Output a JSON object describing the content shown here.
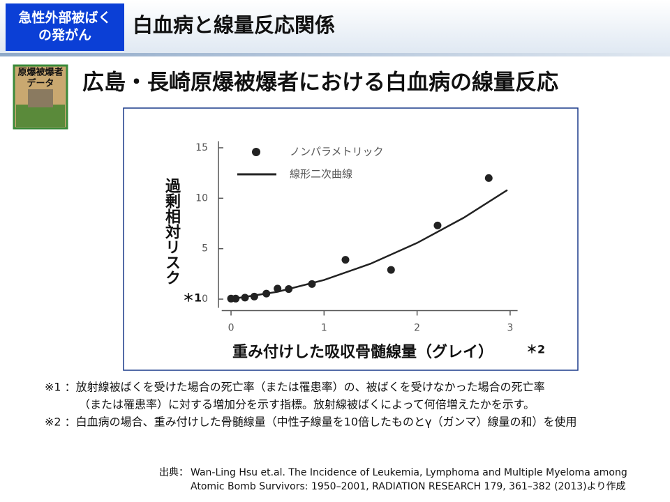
{
  "header": {
    "badge": [
      "急性外部被ばく",
      "の発がん"
    ],
    "title": "白血病と線量反応関係"
  },
  "icon_label": [
    "原爆被爆者",
    "データ"
  ],
  "heading": "広島・長崎原爆被爆者における白血病の線量反応",
  "chart_data": {
    "type": "scatter",
    "y_label": "過剰相対リスク",
    "y_label_note": "＊1",
    "x_label": "重み付けした吸収骨髄線量（グレイ）",
    "x_label_note": "＊2",
    "series": [
      {
        "name": "ノンパラメトリック",
        "type": "scatter",
        "color": "#222222",
        "x": [
          0,
          0.05,
          0.15,
          0.25,
          0.38,
          0.5,
          0.62,
          0.87,
          1.23,
          1.72,
          2.22,
          2.77
        ],
        "values": [
          0.05,
          0.05,
          0.15,
          0.25,
          0.55,
          1.05,
          1.0,
          1.5,
          3.9,
          2.9,
          7.3,
          12.0
        ]
      },
      {
        "name": "線形二次曲線",
        "type": "line",
        "color": "#222222",
        "x": [
          0,
          0.5,
          1,
          1.5,
          2,
          2.5,
          2.97
        ],
        "values": [
          0,
          0.73,
          1.9,
          3.51,
          5.57,
          8.06,
          10.81
        ]
      }
    ],
    "xlim": [
      -0.1,
      3.05
    ],
    "ylim": [
      -1,
      16
    ],
    "xticks": [
      0,
      1,
      2,
      3
    ],
    "yticks": [
      0,
      5,
      10,
      15
    ]
  },
  "notes": [
    "※1 ：放射線被ばくを受けた場合の死亡率（または罹患率）の、被ばくを受けなかった場合の死亡率",
    "（または罹患率）に対する増加分を示す指標。放射線被ばくによって何倍増えたかを示す。",
    "※2 ：白血病の場合、重み付けした骨髄線量（中性子線量を10倍したものとγ（ガンマ）線量の和）を使用"
  ],
  "source": {
    "label": "出典：",
    "lines": [
      "Wan-Ling Hsu et.al. The Incidence of Leukemia, Lymphoma and Multiple Myeloma among",
      "Atomic Bomb Survivors: 1950–2001, RADIATION RESEARCH 179, 361–382 (2013)より作成"
    ]
  }
}
